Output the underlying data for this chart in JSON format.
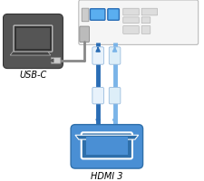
{
  "bg_color": "#ffffff",
  "title_hdmi": "HDMI 3",
  "title_usbc": "USB-C",
  "monitor_box_color": "#4a8fd4",
  "monitor_box_dark": "#2e6faa",
  "device_box_color": "#555555",
  "cable_blue_dark": "#2a6db5",
  "cable_blue_light": "#7ab4e8",
  "connector_white": "#ddeeff",
  "panel_bg": "#f5f5f5",
  "panel_border": "#bbbbbb",
  "cable_gray": "#888888",
  "port_hdmi_color": "#5aaef0",
  "port_usbb_color": "#5aaef0",
  "port_gray": "#cccccc"
}
